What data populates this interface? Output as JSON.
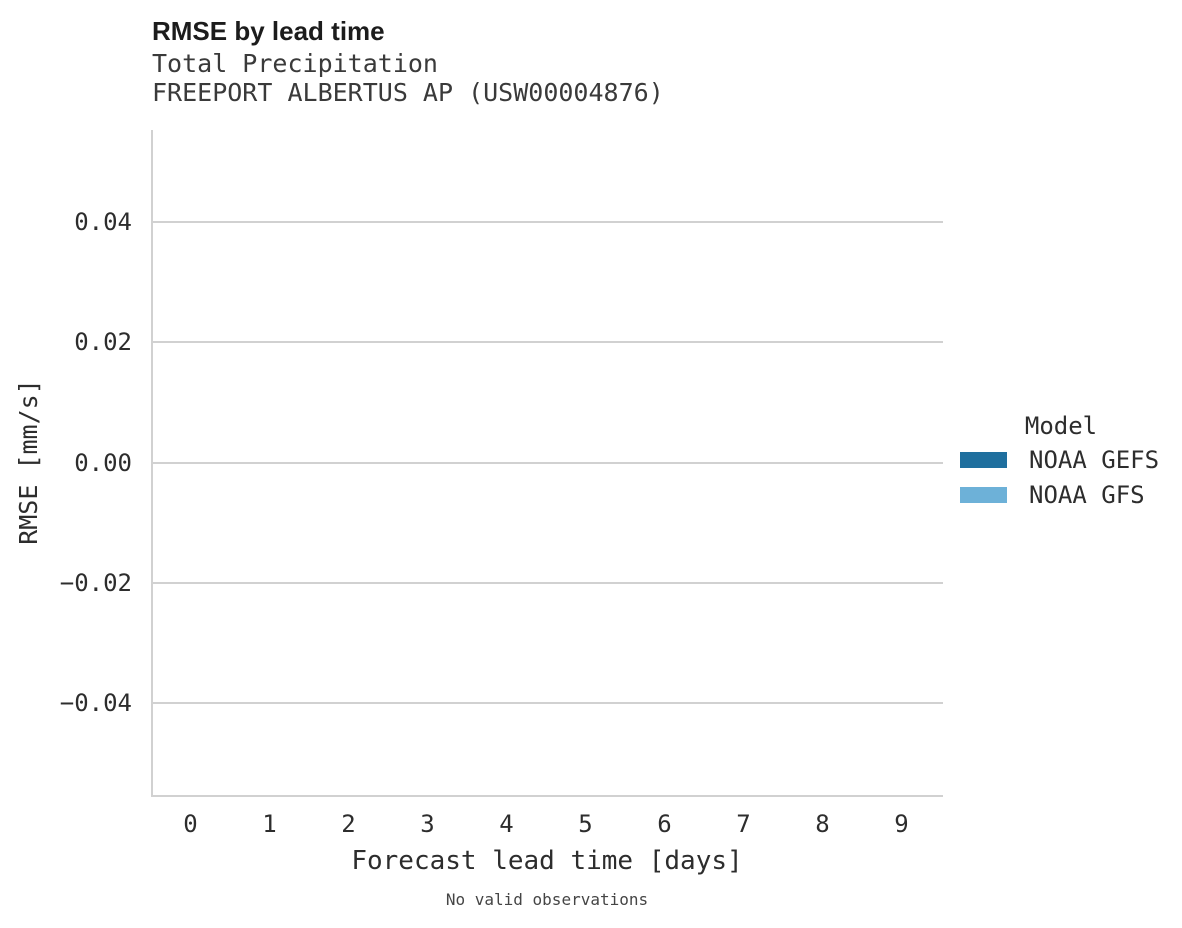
{
  "chart_data": {
    "type": "line",
    "title": "RMSE by lead time",
    "subtitle": "Total Precipitation",
    "station_label": "FREEPORT ALBERTUS AP (USW00004876)",
    "xlabel": "Forecast lead time [days]",
    "ylabel": "RMSE [mm/s]",
    "x_tick_labels": [
      "0",
      "1",
      "2",
      "3",
      "4",
      "5",
      "6",
      "7",
      "8",
      "9"
    ],
    "y_ticks": [
      {
        "value": 0.04,
        "label": "0.04"
      },
      {
        "value": 0.02,
        "label": "0.02"
      },
      {
        "value": 0.0,
        "label": "0.00"
      },
      {
        "value": -0.02,
        "label": "−0.02"
      },
      {
        "value": -0.04,
        "label": "−0.04"
      }
    ],
    "ylim": [
      -0.0552,
      0.0552
    ],
    "grid": "horizontal gridlines only",
    "legend_position": "right",
    "legend_title": "Model",
    "series": [
      {
        "name": "NOAA GEFS",
        "color": "#1f6f9e",
        "values": []
      },
      {
        "name": "NOAA GFS",
        "color": "#6db1d8",
        "values": []
      }
    ],
    "caption": "No valid observations",
    "panel_content": "empty — no data plotted"
  },
  "colors": {
    "background": "#ffffff",
    "grid_and_spines": "#d1d1d1",
    "title_text": "#1c1c1c",
    "subtitle_text": "#3a3a3a",
    "tick_text": "#2d2d2d",
    "caption_text": "#454545",
    "series_noaa_gefs": "#1f6f9e",
    "series_noaa_gfs": "#6db1d8"
  }
}
